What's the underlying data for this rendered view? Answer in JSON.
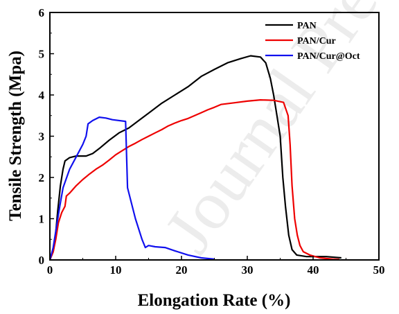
{
  "watermark": "Journal Pre",
  "chart_data": {
    "type": "line",
    "title": "",
    "xlabel": "Elongation Rate (%)",
    "ylabel": "Tensile Strength (Mpa)",
    "xlim": [
      0,
      50
    ],
    "ylim": [
      0,
      6
    ],
    "xticks": [
      0,
      10,
      20,
      30,
      40,
      50
    ],
    "yticks": [
      0,
      1,
      2,
      3,
      4,
      5,
      6
    ],
    "grid": false,
    "legend_position": "top-right",
    "series": [
      {
        "name": "PAN",
        "color": "#000000",
        "points": [
          [
            0,
            0
          ],
          [
            0.5,
            0.2
          ],
          [
            0.8,
            0.5
          ],
          [
            1.2,
            1.2
          ],
          [
            1.6,
            1.8
          ],
          [
            2.0,
            2.2
          ],
          [
            2.3,
            2.4
          ],
          [
            3,
            2.48
          ],
          [
            4,
            2.52
          ],
          [
            5.5,
            2.52
          ],
          [
            6.5,
            2.58
          ],
          [
            7.5,
            2.7
          ],
          [
            9,
            2.9
          ],
          [
            10.5,
            3.08
          ],
          [
            12,
            3.2
          ],
          [
            13.5,
            3.38
          ],
          [
            15,
            3.56
          ],
          [
            17,
            3.8
          ],
          [
            19,
            4.0
          ],
          [
            21,
            4.2
          ],
          [
            23,
            4.45
          ],
          [
            25,
            4.62
          ],
          [
            27,
            4.78
          ],
          [
            29,
            4.88
          ],
          [
            30.5,
            4.95
          ],
          [
            32,
            4.92
          ],
          [
            32.8,
            4.78
          ],
          [
            33.5,
            4.4
          ],
          [
            34,
            4.0
          ],
          [
            34.5,
            3.5
          ],
          [
            35,
            3.0
          ],
          [
            35.4,
            2.0
          ],
          [
            35.8,
            1.3
          ],
          [
            36.3,
            0.6
          ],
          [
            36.8,
            0.25
          ],
          [
            37.5,
            0.12
          ],
          [
            39,
            0.08
          ],
          [
            42,
            0.08
          ],
          [
            44.3,
            0.05
          ]
        ]
      },
      {
        "name": "PAN/Cur",
        "color": "#ee0000",
        "points": [
          [
            0,
            0
          ],
          [
            0.5,
            0.2
          ],
          [
            0.9,
            0.5
          ],
          [
            1.3,
            0.9
          ],
          [
            1.8,
            1.15
          ],
          [
            2.3,
            1.3
          ],
          [
            2.5,
            1.55
          ],
          [
            3,
            1.62
          ],
          [
            4,
            1.8
          ],
          [
            5,
            1.95
          ],
          [
            6,
            2.08
          ],
          [
            7,
            2.2
          ],
          [
            8,
            2.3
          ],
          [
            9,
            2.42
          ],
          [
            10,
            2.55
          ],
          [
            11,
            2.65
          ],
          [
            12,
            2.75
          ],
          [
            13,
            2.83
          ],
          [
            14,
            2.92
          ],
          [
            15,
            3.0
          ],
          [
            16,
            3.08
          ],
          [
            17,
            3.16
          ],
          [
            18,
            3.25
          ],
          [
            19,
            3.32
          ],
          [
            20,
            3.38
          ],
          [
            21,
            3.43
          ],
          [
            22,
            3.5
          ],
          [
            23,
            3.57
          ],
          [
            24,
            3.64
          ],
          [
            25,
            3.7
          ],
          [
            26,
            3.77
          ],
          [
            28,
            3.81
          ],
          [
            30,
            3.85
          ],
          [
            32,
            3.88
          ],
          [
            34,
            3.87
          ],
          [
            35.5,
            3.82
          ],
          [
            36.2,
            3.5
          ],
          [
            36.5,
            2.8
          ],
          [
            36.8,
            1.8
          ],
          [
            37.2,
            1.0
          ],
          [
            37.6,
            0.6
          ],
          [
            38,
            0.35
          ],
          [
            38.5,
            0.2
          ],
          [
            39.5,
            0.12
          ],
          [
            41,
            0.05
          ],
          [
            43,
            0.02
          ],
          [
            44,
            0.01
          ]
        ]
      },
      {
        "name": "PAN/Cur@Oct",
        "color": "#1010ee",
        "points": [
          [
            0,
            0
          ],
          [
            0.5,
            0.3
          ],
          [
            1,
            0.8
          ],
          [
            1.5,
            1.3
          ],
          [
            2,
            1.75
          ],
          [
            3,
            2.2
          ],
          [
            4,
            2.5
          ],
          [
            5,
            2.8
          ],
          [
            5.5,
            3.0
          ],
          [
            5.8,
            3.3
          ],
          [
            6.5,
            3.38
          ],
          [
            7.5,
            3.46
          ],
          [
            8.5,
            3.44
          ],
          [
            9.5,
            3.4
          ],
          [
            11.5,
            3.36
          ],
          [
            11.8,
            1.75
          ],
          [
            13,
            1.0
          ],
          [
            14,
            0.5
          ],
          [
            14.5,
            0.3
          ],
          [
            15,
            0.35
          ],
          [
            16,
            0.32
          ],
          [
            17.5,
            0.3
          ],
          [
            19,
            0.22
          ],
          [
            21,
            0.12
          ],
          [
            23,
            0.05
          ],
          [
            25,
            0.02
          ]
        ]
      }
    ]
  }
}
